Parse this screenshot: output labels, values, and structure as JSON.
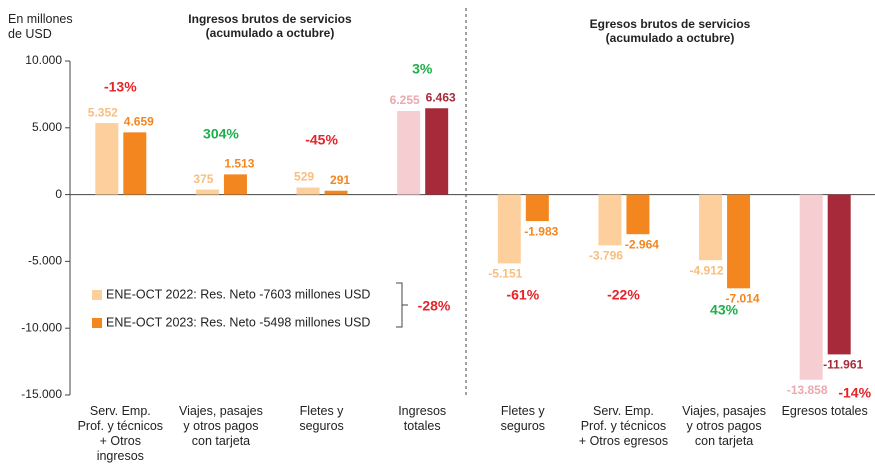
{
  "chart_data": {
    "type": "bar",
    "ylabel": "En millones\nde USD",
    "titles": [
      "Ingresos brutos de servicios\n(acumulado a octubre)",
      "Egresos brutos de servicios\n(acumulado a octubre)"
    ],
    "categories": [
      "Serv. Emp.\nProf. y técnicos\n+ Otros\ningresos",
      "Viajes, pasajes\ny otros pagos\ncon tarjeta",
      "Fletes y\nseguros",
      "Ingresos\ntotales",
      "Fletes y\nseguros",
      "Serv. Emp.\nProf. y técnicos\n+ Otros egresos",
      "Viajes, pasajes\ny otros pagos\ncon tarjeta",
      "Egresos totales"
    ],
    "series": [
      {
        "name": "ENE-OCT 2022: Res. Neto -7603 millones USD",
        "color": "#fdcf9c",
        "colors": [
          "#fdcf9c",
          "#fdcf9c",
          "#fdcf9c",
          "#f6cdd0",
          "#fdcf9c",
          "#fdcf9c",
          "#fdcf9c",
          "#f6cdd0"
        ],
        "label_colors": [
          "#f9bd7e",
          "#f9bd7e",
          "#f9bd7e",
          "#e9a9ae",
          "#f9bd7e",
          "#f9bd7e",
          "#f9bd7e",
          "#e9a9ae"
        ],
        "values": [
          5352,
          375,
          529,
          6255,
          -5151,
          -3796,
          -4912,
          -13858
        ],
        "value_labels": [
          "5.352",
          "375",
          "529",
          "6.255",
          "-5.151",
          "-3.796",
          "-4.912",
          "-13.858"
        ]
      },
      {
        "name": "ENE-OCT 2023: Res. Neto -5498 millones USD",
        "color": "#f4861f",
        "colors": [
          "#f4861f",
          "#f4861f",
          "#f4861f",
          "#a72a3b",
          "#f4861f",
          "#f4861f",
          "#f4861f",
          "#a72a3b"
        ],
        "label_colors": [
          "#f4861f",
          "#f4861f",
          "#f4861f",
          "#a72a3b",
          "#f4861f",
          "#f4861f",
          "#f4861f",
          "#a72a3b"
        ],
        "values": [
          4659,
          1513,
          291,
          6463,
          -1983,
          -2964,
          -7014,
          -11961
        ],
        "value_labels": [
          "4.659",
          "1.513",
          "291",
          "6.463",
          "-1.983",
          "-2.964",
          "-7.014",
          "-11.961"
        ]
      }
    ],
    "changes": [
      {
        "text": "-13%",
        "color": "#e52329"
      },
      {
        "text": "304%",
        "color": "#1fae4b"
      },
      {
        "text": "-45%",
        "color": "#e52329"
      },
      {
        "text": "3%",
        "color": "#1fae4b"
      },
      {
        "text": "-61%",
        "color": "#e52329"
      },
      {
        "text": "-22%",
        "color": "#e52329"
      },
      {
        "text": "43%",
        "color": "#1fae4b"
      },
      {
        "text": "-14%",
        "color": "#e52329"
      }
    ],
    "net_change": {
      "text": "-28%",
      "color": "#e52329"
    },
    "ylim": [
      -15000,
      10000
    ],
    "yticks": [
      {
        "value": 10000,
        "label": "10.000"
      },
      {
        "value": 5000,
        "label": "5.000"
      },
      0,
      {
        "value": -5000,
        "label": "-5.000"
      },
      {
        "value": -10000,
        "label": "-10.000"
      },
      {
        "value": -15000,
        "label": "-15.000"
      }
    ]
  }
}
